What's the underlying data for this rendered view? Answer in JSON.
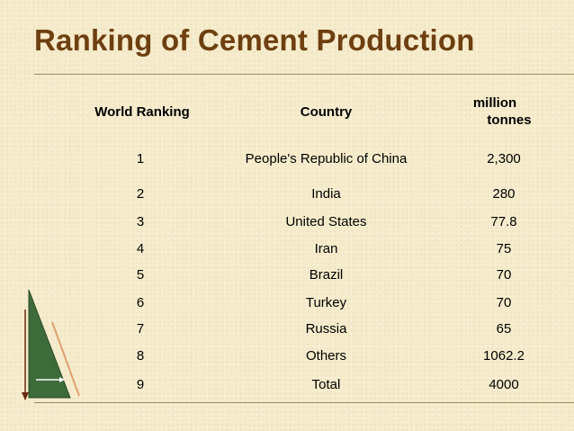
{
  "slide": {
    "title": "Ranking of Cement Production"
  },
  "table": {
    "headers": {
      "rank": "World Ranking",
      "country": "Country",
      "unit_line1": "million",
      "unit_line2": "tonnes"
    },
    "rows": [
      {
        "rank": "1",
        "country": "People's Republic of China",
        "value": "2,300"
      },
      {
        "rank": "2",
        "country": "India",
        "value": "280"
      },
      {
        "rank": "3",
        "country": "United States",
        "value": "77.8"
      },
      {
        "rank": "4",
        "country": "Iran",
        "value": "75"
      },
      {
        "rank": "5",
        "country": "Brazil",
        "value": "70"
      },
      {
        "rank": "6",
        "country": "Turkey",
        "value": "70"
      },
      {
        "rank": "7",
        "country": "Russia",
        "value": "65"
      },
      {
        "rank": "8",
        "country": "Others",
        "value": "1062.2"
      },
      {
        "rank": "9",
        "country": "Total",
        "value": "4000"
      }
    ]
  },
  "colors": {
    "background": "#f6eccc",
    "title": "#6e3f10",
    "text": "#000000",
    "decor_green": "#3e6b3a",
    "decor_orange": "#e2a070"
  }
}
